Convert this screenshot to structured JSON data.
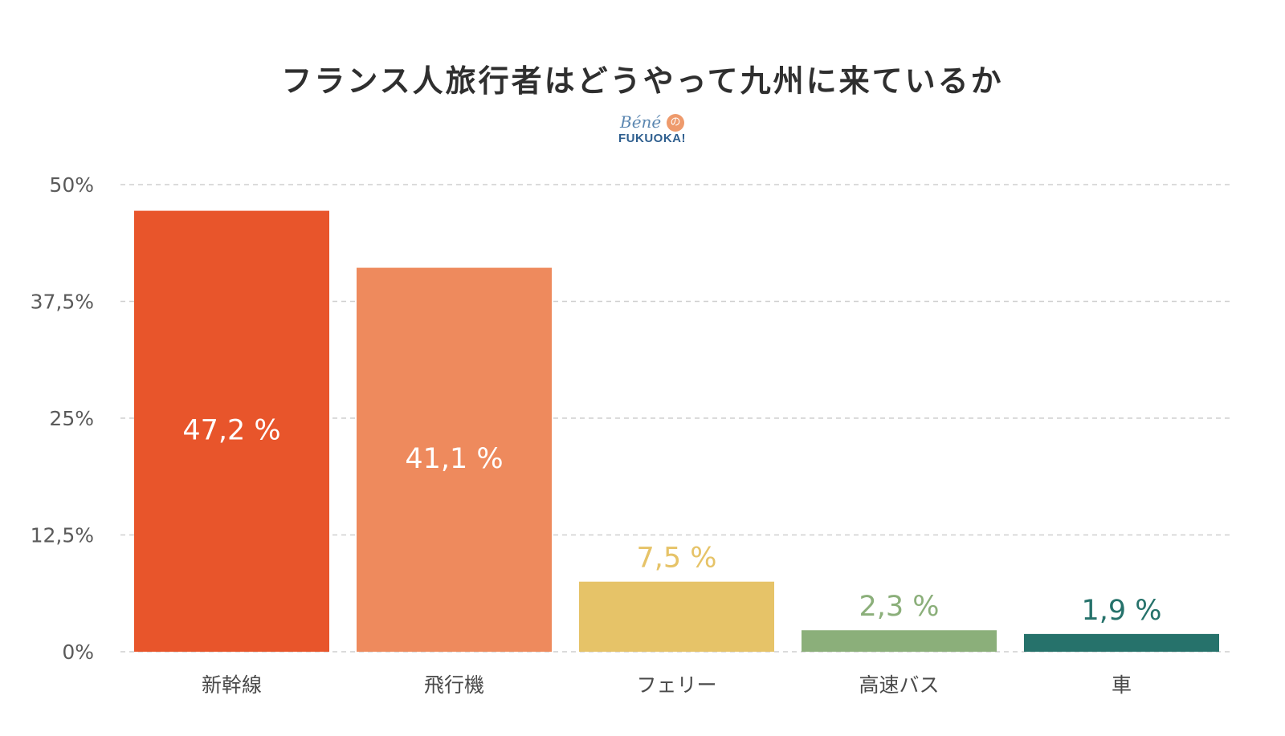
{
  "title": "フランス人旅行者はどうやって九州に来ているか",
  "logo": {
    "line1": "Béné",
    "mark": "の",
    "line2": "FUKUOKA!"
  },
  "chart_data": {
    "type": "bar",
    "title": "フランス人旅行者はどうやって九州に来ているか",
    "categories": [
      "新幹線",
      "飛行機",
      "フェリー",
      "高速バス",
      "車"
    ],
    "values": [
      47.2,
      41.1,
      7.5,
      2.3,
      1.9
    ],
    "data_labels": [
      "47,2 %",
      "41,1 %",
      "7,5 %",
      "2,3 %",
      "1,9 %"
    ],
    "colors": [
      "#e8552b",
      "#ee8a5d",
      "#e6c368",
      "#8baf7a",
      "#26726b"
    ],
    "label_inside": [
      true,
      true,
      false,
      false,
      false
    ],
    "ylim": [
      0,
      50
    ],
    "yticks": [
      0,
      12.5,
      25,
      37.5,
      50
    ],
    "ytick_labels": [
      "0%",
      "12,5%",
      "25%",
      "37,5%",
      "50%"
    ],
    "xlabel": "",
    "ylabel": "",
    "grid": true,
    "grid_style": "dashed",
    "legend": "none"
  }
}
